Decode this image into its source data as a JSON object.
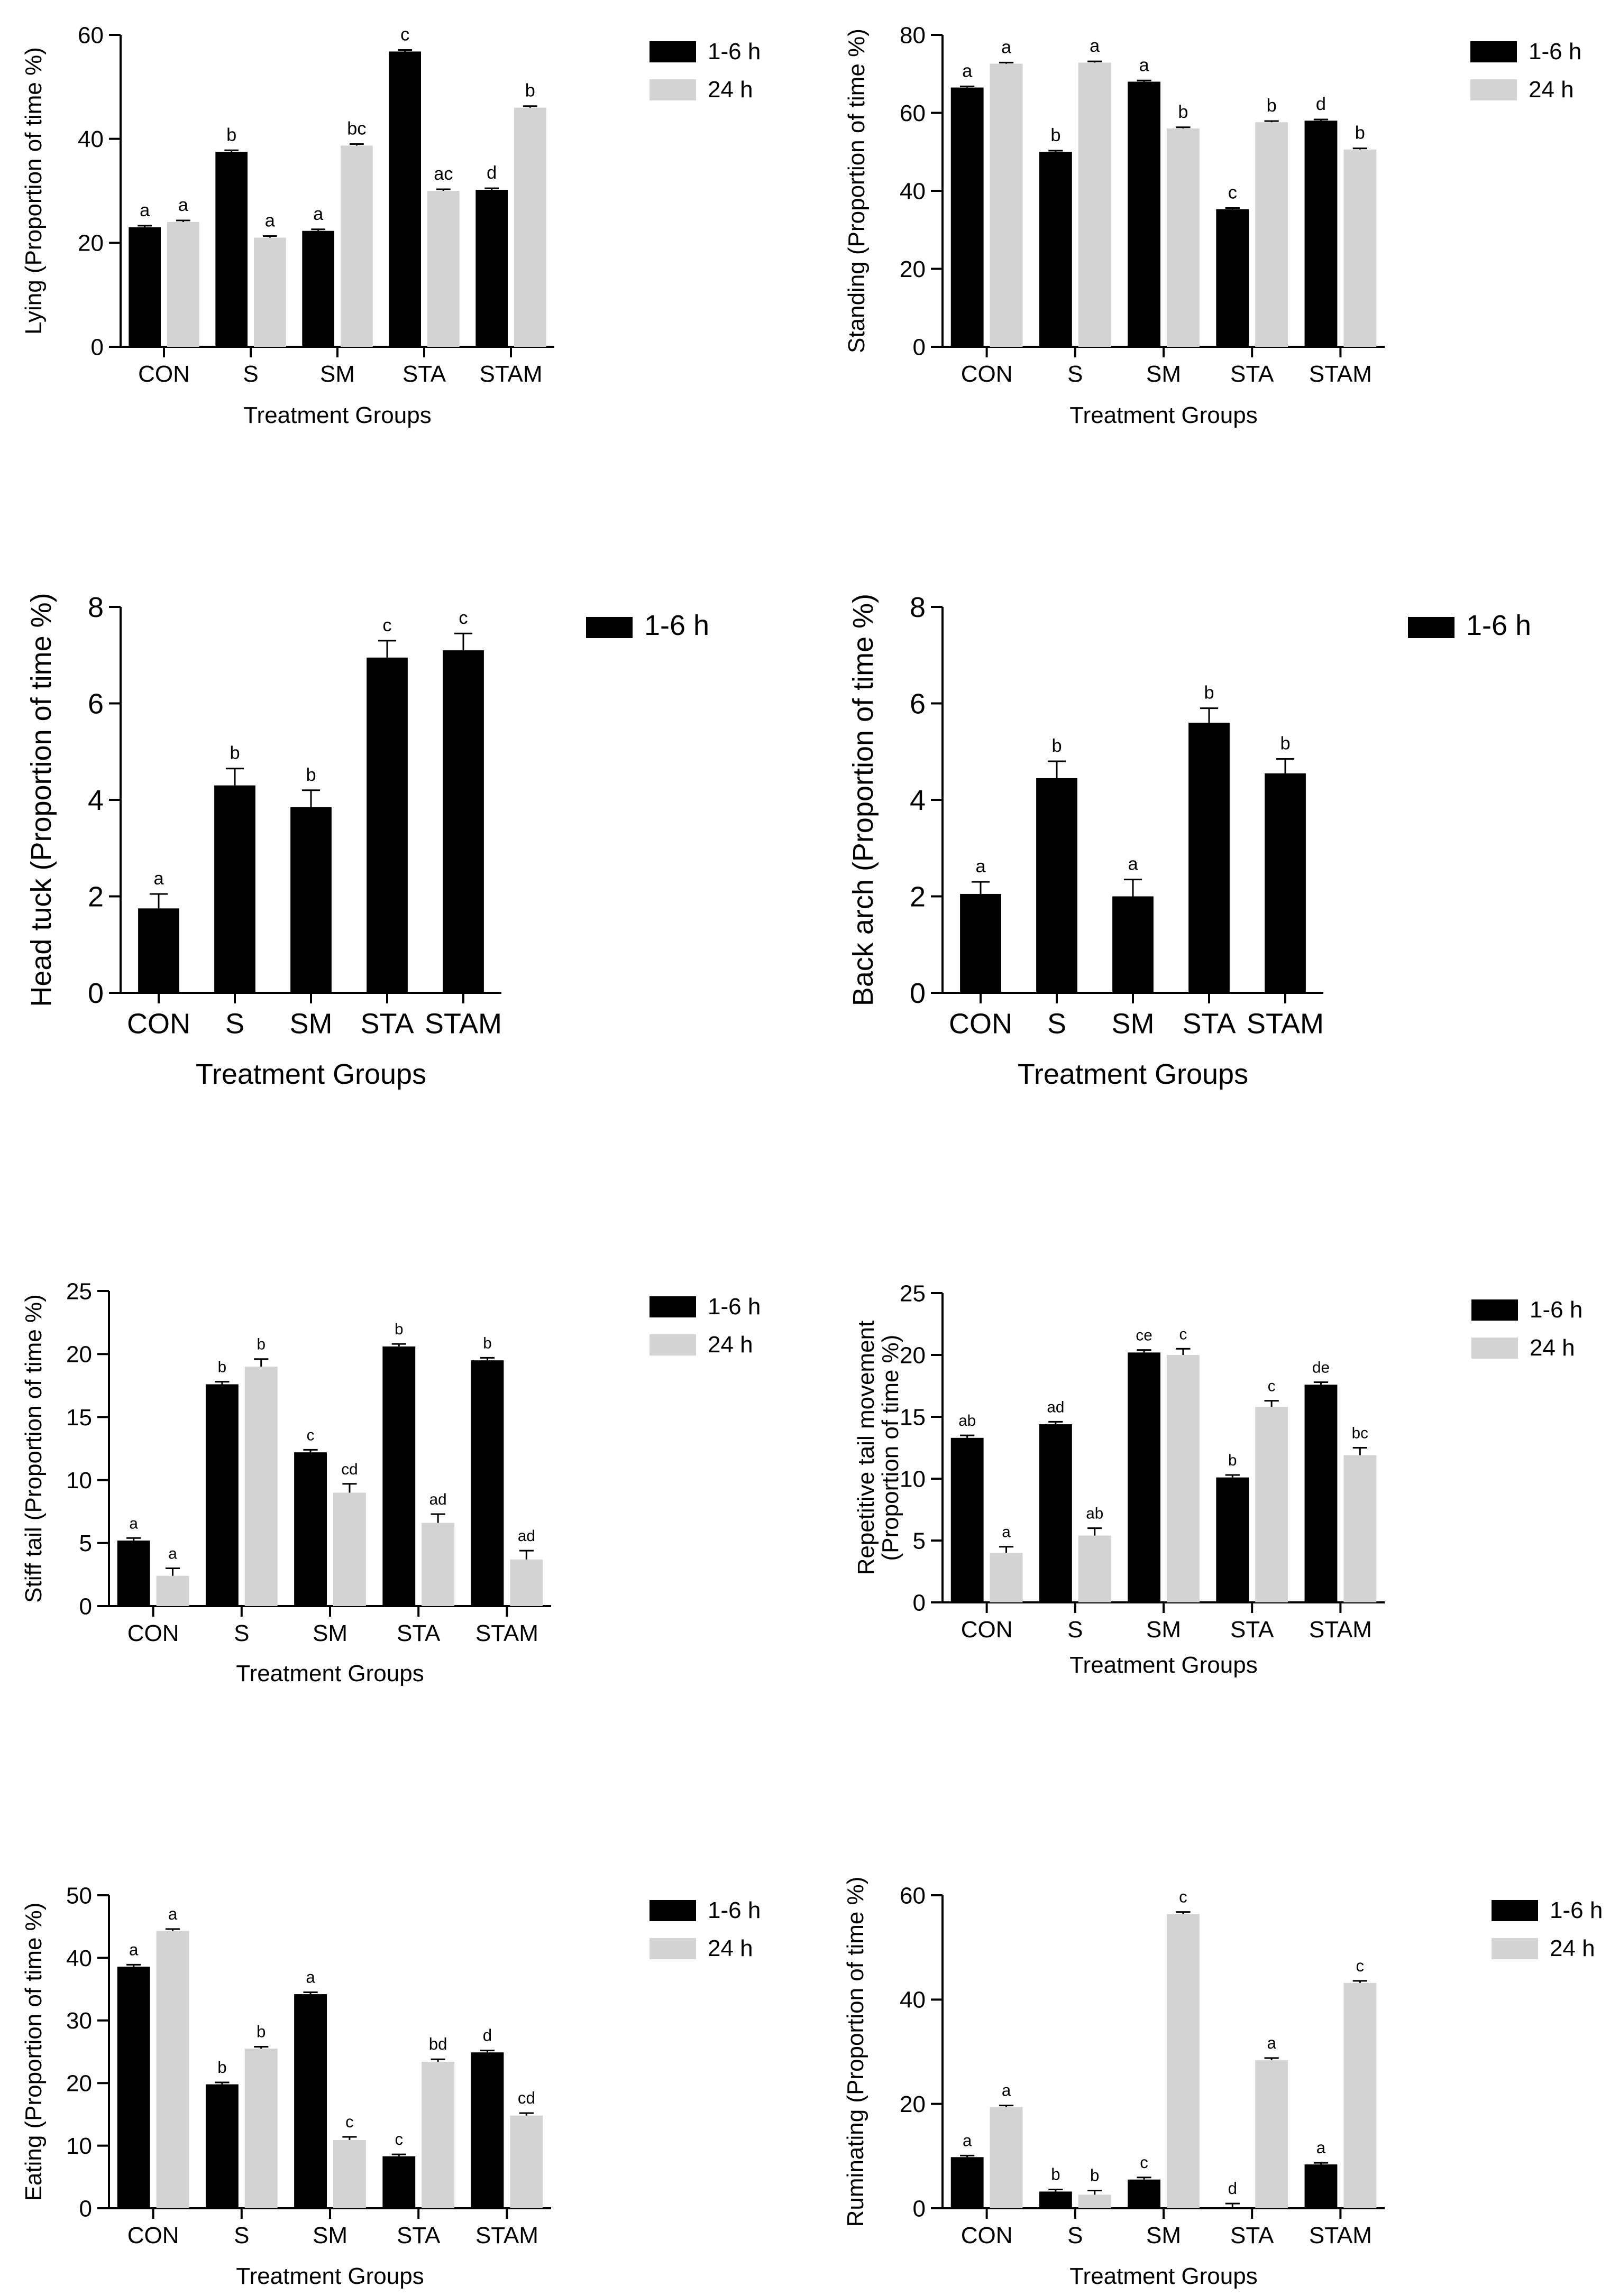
{
  "colors": {
    "series_1_6h": "#000000",
    "series_24h": "#d3d3d3",
    "axis": "#000000"
  },
  "legend_labels": {
    "h1_6": "1-6 h",
    "h24": "24 h"
  },
  "chart_data": [
    {
      "id": "lying",
      "type": "bar",
      "title": "",
      "ylabel": "Lying (Proportion of time %)",
      "xlabel": "Treatment Groups",
      "ylim": [
        0,
        60
      ],
      "yticks": [
        0,
        20,
        40,
        60
      ],
      "categories": [
        "CON",
        "S",
        "SM",
        "STA",
        "STAM"
      ],
      "series": [
        {
          "name": "1-6 h",
          "values": [
            23,
            37.5,
            22.3,
            56.8,
            30.2
          ],
          "errors": [
            0.3,
            0.3,
            0.3,
            0.3,
            0.3
          ],
          "letters": [
            "a",
            "b",
            "a",
            "c",
            "d"
          ]
        },
        {
          "name": "24 h",
          "values": [
            24,
            21,
            38.7,
            30,
            46
          ],
          "errors": [
            0.3,
            0.3,
            0.3,
            0.3,
            0.3
          ],
          "letters": [
            "a",
            "a",
            "bc",
            "ac",
            "b"
          ]
        }
      ]
    },
    {
      "id": "standing",
      "type": "bar",
      "title": "",
      "ylabel": "Standing (Proportion of time %)",
      "xlabel": "Treatment Groups",
      "ylim": [
        0,
        80
      ],
      "yticks": [
        0,
        20,
        40,
        60,
        80
      ],
      "categories": [
        "CON",
        "S",
        "SM",
        "STA",
        "STAM"
      ],
      "series": [
        {
          "name": "1-6 h",
          "values": [
            66.5,
            50,
            68,
            35.3,
            58
          ],
          "errors": [
            0.3,
            0.3,
            0.3,
            0.3,
            0.3
          ],
          "letters": [
            "a",
            "b",
            "a",
            "c",
            "d"
          ]
        },
        {
          "name": "24 h",
          "values": [
            72.6,
            72.9,
            56,
            57.6,
            50.6
          ],
          "errors": [
            0.3,
            0.3,
            0.3,
            0.3,
            0.3
          ],
          "letters": [
            "a",
            "a",
            "b",
            "b",
            "b"
          ]
        }
      ]
    },
    {
      "id": "headtuck",
      "type": "bar",
      "title": "",
      "ylabel": "Head tuck (Proportion of time %)",
      "xlabel": "Treatment Groups",
      "ylim": [
        0,
        8
      ],
      "yticks": [
        0,
        2,
        4,
        6,
        8
      ],
      "categories": [
        "CON",
        "S",
        "SM",
        "STA",
        "STAM"
      ],
      "series": [
        {
          "name": "1-6 h",
          "values": [
            1.75,
            4.3,
            3.85,
            6.95,
            7.1
          ],
          "errors": [
            0.3,
            0.35,
            0.35,
            0.35,
            0.35
          ],
          "letters": [
            "a",
            "b",
            "b",
            "c",
            "c"
          ]
        }
      ]
    },
    {
      "id": "backarch",
      "type": "bar",
      "title": "",
      "ylabel": "Back arch (Proportion of time %)",
      "xlabel": "Treatment Groups",
      "ylim": [
        0,
        8
      ],
      "yticks": [
        0,
        2,
        4,
        6,
        8
      ],
      "categories": [
        "CON",
        "S",
        "SM",
        "STA",
        "STAM"
      ],
      "series": [
        {
          "name": "1-6 h",
          "values": [
            2.05,
            4.45,
            2,
            5.6,
            4.55
          ],
          "errors": [
            0.25,
            0.35,
            0.35,
            0.3,
            0.3
          ],
          "letters": [
            "a",
            "b",
            "a",
            "b",
            "b"
          ]
        }
      ]
    },
    {
      "id": "stifftail",
      "type": "bar",
      "title": "",
      "ylabel": "Stiff tail (Proportion of time %)",
      "xlabel": "Treatment Groups",
      "ylim": [
        0,
        25
      ],
      "yticks": [
        0,
        5,
        10,
        15,
        20,
        25
      ],
      "categories": [
        "CON",
        "S",
        "SM",
        "STA",
        "STAM"
      ],
      "series": [
        {
          "name": "1-6 h",
          "values": [
            5.2,
            17.6,
            12.2,
            20.6,
            19.5
          ],
          "errors": [
            0.2,
            0.2,
            0.2,
            0.2,
            0.2
          ],
          "letters": [
            "a",
            "b",
            "c",
            "b",
            "b"
          ]
        },
        {
          "name": "24 h",
          "values": [
            2.4,
            19,
            9,
            6.6,
            3.7
          ],
          "errors": [
            0.6,
            0.6,
            0.7,
            0.7,
            0.7
          ],
          "letters": [
            "a",
            "b",
            "cd",
            "ad",
            "ad"
          ]
        }
      ]
    },
    {
      "id": "repetitivetail",
      "type": "bar",
      "title": "",
      "ylabel": [
        "Repetitive tail movement",
        "(Proportion of time %)"
      ],
      "xlabel": "Treatment Groups",
      "ylim": [
        0,
        25
      ],
      "yticks": [
        0,
        5,
        10,
        15,
        20,
        25
      ],
      "categories": [
        "CON",
        "S",
        "SM",
        "STA",
        "STAM"
      ],
      "series": [
        {
          "name": "1-6 h",
          "values": [
            13.3,
            14.4,
            20.2,
            10.1,
            17.6
          ],
          "errors": [
            0.2,
            0.2,
            0.2,
            0.2,
            0.2
          ],
          "letters": [
            "ab",
            "ad",
            "ce",
            "b",
            "de"
          ]
        },
        {
          "name": "24 h",
          "values": [
            4,
            5.4,
            20,
            15.8,
            11.9
          ],
          "errors": [
            0.5,
            0.6,
            0.5,
            0.5,
            0.6
          ],
          "letters": [
            "a",
            "ab",
            "c",
            "c",
            "bc"
          ]
        }
      ]
    },
    {
      "id": "eating",
      "type": "bar",
      "title": "",
      "ylabel": "Eating (Proportion of time %)",
      "xlabel": "Treatment Groups",
      "ylim": [
        0,
        50
      ],
      "yticks": [
        0,
        10,
        20,
        30,
        40,
        50
      ],
      "categories": [
        "CON",
        "S",
        "SM",
        "STA",
        "STAM"
      ],
      "series": [
        {
          "name": "1-6 h",
          "values": [
            38.6,
            19.8,
            34.2,
            8.3,
            24.9
          ],
          "errors": [
            0.3,
            0.3,
            0.3,
            0.3,
            0.3
          ],
          "letters": [
            "a",
            "b",
            "a",
            "c",
            "d"
          ]
        },
        {
          "name": "24 h",
          "values": [
            44.3,
            25.5,
            10.9,
            23.4,
            14.8
          ],
          "errors": [
            0.3,
            0.3,
            0.5,
            0.4,
            0.4
          ],
          "letters": [
            "a",
            "b",
            "c",
            "bd",
            "cd"
          ]
        }
      ]
    },
    {
      "id": "ruminating",
      "type": "bar",
      "title": "",
      "ylabel": "Ruminating (Proportion of time %)",
      "xlabel": "Treatment Groups",
      "ylim": [
        0,
        60
      ],
      "yticks": [
        0,
        20,
        40,
        60
      ],
      "categories": [
        "CON",
        "S",
        "SM",
        "STA",
        "STAM"
      ],
      "series": [
        {
          "name": "1-6 h",
          "values": [
            9.8,
            3.2,
            5.5,
            0,
            8.4
          ],
          "errors": [
            0.3,
            0.4,
            0.4,
            0.9,
            0.3
          ],
          "letters": [
            "a",
            "b",
            "c",
            "d",
            "a"
          ]
        },
        {
          "name": "24 h",
          "values": [
            19.4,
            2.6,
            56.4,
            28.4,
            43.2
          ],
          "errors": [
            0.3,
            0.8,
            0.4,
            0.4,
            0.4
          ],
          "letters": [
            "a",
            "b",
            "c",
            "a",
            "c"
          ]
        }
      ]
    }
  ]
}
